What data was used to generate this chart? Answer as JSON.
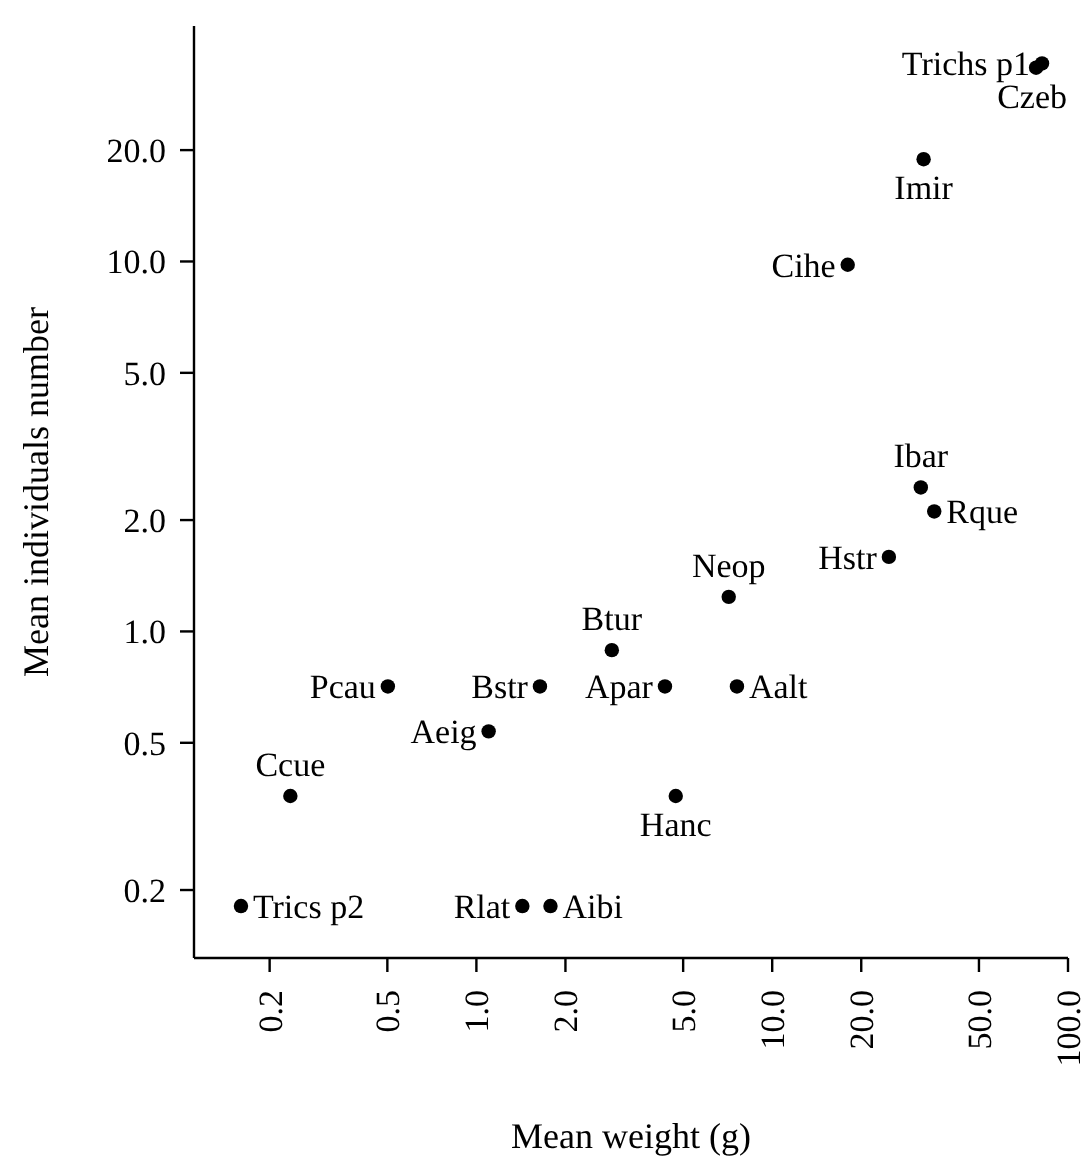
{
  "chart_data": {
    "type": "scatter",
    "xlabel": "Mean weight (g)",
    "ylabel": "Mean individuals number",
    "log": "xy",
    "marker": "circle",
    "xlim": [
      0.111,
      100
    ],
    "ylim": [
      0.131,
      43.3
    ],
    "xticks": [
      {
        "value": 0.2,
        "label": "0.2"
      },
      {
        "value": 0.5,
        "label": "0.5"
      },
      {
        "value": 1,
        "label": "1.0"
      },
      {
        "value": 2,
        "label": "2.0"
      },
      {
        "value": 5,
        "label": "5.0"
      },
      {
        "value": 10,
        "label": "10.0"
      },
      {
        "value": 20,
        "label": "20.0"
      },
      {
        "value": 50,
        "label": "50.0"
      },
      {
        "value": 100,
        "label": "100.0"
      }
    ],
    "yticks": [
      {
        "value": 0.2,
        "label": "0.2"
      },
      {
        "value": 0.5,
        "label": "0.5"
      },
      {
        "value": 1,
        "label": "1.0"
      },
      {
        "value": 2,
        "label": "2.0"
      },
      {
        "value": 5,
        "label": "5.0"
      },
      {
        "value": 10,
        "label": "10.0"
      },
      {
        "value": 20,
        "label": "20.0"
      }
    ],
    "series": [
      {
        "color": "#000000",
        "x": [
          81.7,
          78,
          32.5,
          18.0,
          31.8,
          35.3,
          24.8,
          7.13,
          2.87,
          0.502,
          1.64,
          4.34,
          7.6,
          1.1,
          0.235,
          4.72,
          0.16,
          1.43,
          1.78
        ],
        "values": [
          34.3,
          33.4,
          18.9,
          9.8,
          2.45,
          2.11,
          1.59,
          1.24,
          0.89,
          0.71,
          0.71,
          0.71,
          0.71,
          0.537,
          0.359,
          0.359,
          0.181,
          0.181,
          0.181
        ]
      }
    ],
    "annotations": [
      {
        "text": "Trichs p1",
        "x": 81.7,
        "y": 34.3
      },
      {
        "text": "Czeb",
        "x": 78,
        "y": 33.4
      },
      {
        "text": "Imir",
        "x": 32.5,
        "y": 18.9
      },
      {
        "text": "Cihe",
        "x": 18.0,
        "y": 9.8
      },
      {
        "text": "Ibar",
        "x": 31.8,
        "y": 2.45
      },
      {
        "text": "Rque",
        "x": 35.3,
        "y": 2.11
      },
      {
        "text": "Hstr",
        "x": 24.8,
        "y": 1.59
      },
      {
        "text": "Neop",
        "x": 7.13,
        "y": 1.24
      },
      {
        "text": "Btur",
        "x": 2.87,
        "y": 0.89
      },
      {
        "text": "Pcau",
        "x": 0.502,
        "y": 0.71
      },
      {
        "text": "Bstr",
        "x": 1.64,
        "y": 0.71
      },
      {
        "text": "Apar",
        "x": 4.34,
        "y": 0.71
      },
      {
        "text": "Aalt",
        "x": 7.6,
        "y": 0.71
      },
      {
        "text": "Aeig",
        "x": 1.1,
        "y": 0.537
      },
      {
        "text": "Ccue",
        "x": 0.235,
        "y": 0.359
      },
      {
        "text": "Hanc",
        "x": 4.72,
        "y": 0.359
      },
      {
        "text": "Trics p2",
        "x": 0.16,
        "y": 0.181
      },
      {
        "text": "Rlat",
        "x": 1.43,
        "y": 0.181
      },
      {
        "text": "Aibi",
        "x": 1.78,
        "y": 0.181
      }
    ]
  }
}
